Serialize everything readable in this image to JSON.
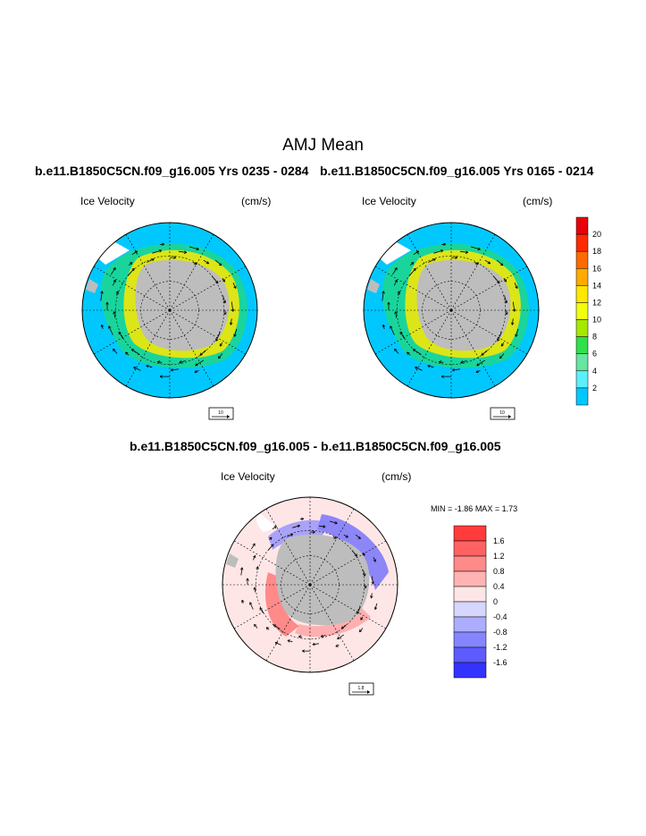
{
  "main_title": "AMJ Mean",
  "panels": {
    "left": {
      "title": "b.e11.B1850C5CN.f09_g16.005  Yrs 0235 - 0284",
      "field_label": "Ice Velocity",
      "units": "(cm/s)",
      "ref_vector_label": "10"
    },
    "right": {
      "title": "b.e11.B1850C5CN.f09_g16.005  Yrs 0165 - 0214",
      "field_label": "Ice Velocity",
      "units": "(cm/s)",
      "ref_vector_label": "10"
    },
    "diff": {
      "title": "b.e11.B1850C5CN.f09_g16.005 - b.e11.B1850C5CN.f09_g16.005",
      "field_label": "Ice Velocity",
      "units": "(cm/s)",
      "ref_vector_label": "1.8",
      "min_label": "MIN =",
      "min_value": "-1.86",
      "max_label": "MAX =",
      "max_value": "1.73"
    }
  },
  "chart_data": [
    {
      "type": "heatmap",
      "projection": "south-polar-stereographic",
      "title": "b.e11.B1850C5CN.f09_g16.005  Yrs 0235 - 0284",
      "variable": "Ice Velocity",
      "units": "cm/s",
      "vector_reference": 10,
      "colorbar": {
        "levels": [
          2,
          4,
          6,
          8,
          10,
          12,
          14,
          16,
          18,
          20
        ],
        "colors": [
          "#00c8ff",
          "#5cf0ff",
          "#66e6a0",
          "#2ee04a",
          "#a6e800",
          "#f0ff10",
          "#ffe800",
          "#ffaa00",
          "#ff6a00",
          "#ff2a00",
          "#e8000a"
        ]
      }
    },
    {
      "type": "heatmap",
      "projection": "south-polar-stereographic",
      "title": "b.e11.B1850C5CN.f09_g16.005  Yrs 0165 - 0214",
      "variable": "Ice Velocity",
      "units": "cm/s",
      "vector_reference": 10,
      "colorbar_shared_with": 0
    },
    {
      "type": "heatmap",
      "projection": "south-polar-stereographic",
      "title": "b.e11.B1850C5CN.f09_g16.005 - b.e11.B1850C5CN.f09_g16.005",
      "variable": "Ice Velocity",
      "units": "cm/s",
      "vector_reference": 1.8,
      "min": -1.86,
      "max": 1.73,
      "colorbar": {
        "levels": [
          -1.6,
          -1.2,
          -0.8,
          -0.4,
          0,
          0.4,
          0.8,
          1.2,
          1.6
        ],
        "colors": [
          "#3333ff",
          "#5c5cff",
          "#8585ff",
          "#adadff",
          "#d6d6ff",
          "#ffe6e6",
          "#ffb3b3",
          "#ff8a8a",
          "#ff6262",
          "#ff3b3b"
        ]
      }
    }
  ]
}
